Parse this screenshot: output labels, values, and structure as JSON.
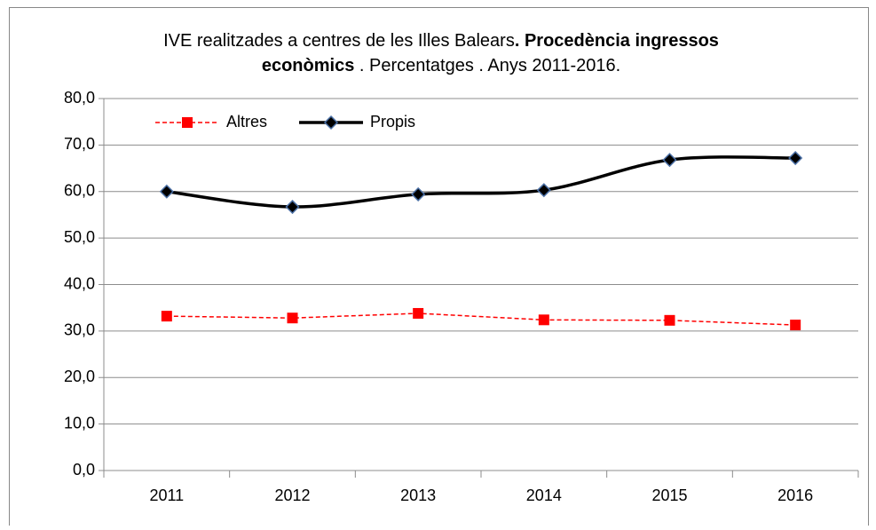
{
  "chart_data": {
    "type": "line",
    "title": [
      [
        {
          "text": "IVE realitzades a centres de les Illes Balears",
          "bold": false
        },
        {
          "text": ". Procedència ingressos",
          "bold": true
        }
      ],
      [
        {
          "text": "econòmics",
          "bold": true
        },
        {
          "text": " . Percentatges . Anys 2011-2016.",
          "bold": false
        }
      ]
    ],
    "categories": [
      "2011",
      "2012",
      "2013",
      "2014",
      "2015",
      "2016"
    ],
    "series": [
      {
        "name": "Altres",
        "color": "#ff0000",
        "marker": "square",
        "dashed": true,
        "smooth": false,
        "values": [
          33.2,
          32.8,
          33.8,
          32.4,
          32.3,
          31.3
        ]
      },
      {
        "name": "Propis",
        "color": "#000000",
        "marker": "diamond",
        "dashed": false,
        "smooth": true,
        "values": [
          60.0,
          56.7,
          59.4,
          60.3,
          66.8,
          67.2
        ]
      }
    ],
    "ylim": [
      0,
      80
    ],
    "yticks": [
      {
        "value": 0,
        "label": "0,0"
      },
      {
        "value": 10,
        "label": "10,0"
      },
      {
        "value": 20,
        "label": "20,0"
      },
      {
        "value": 30,
        "label": "30,0"
      },
      {
        "value": 40,
        "label": "40,0"
      },
      {
        "value": 50,
        "label": "50,0"
      },
      {
        "value": 60,
        "label": "60,0"
      },
      {
        "value": 70,
        "label": "70,0"
      },
      {
        "value": 80,
        "label": "80,0"
      }
    ],
    "grid": true,
    "legend": "top-left"
  }
}
